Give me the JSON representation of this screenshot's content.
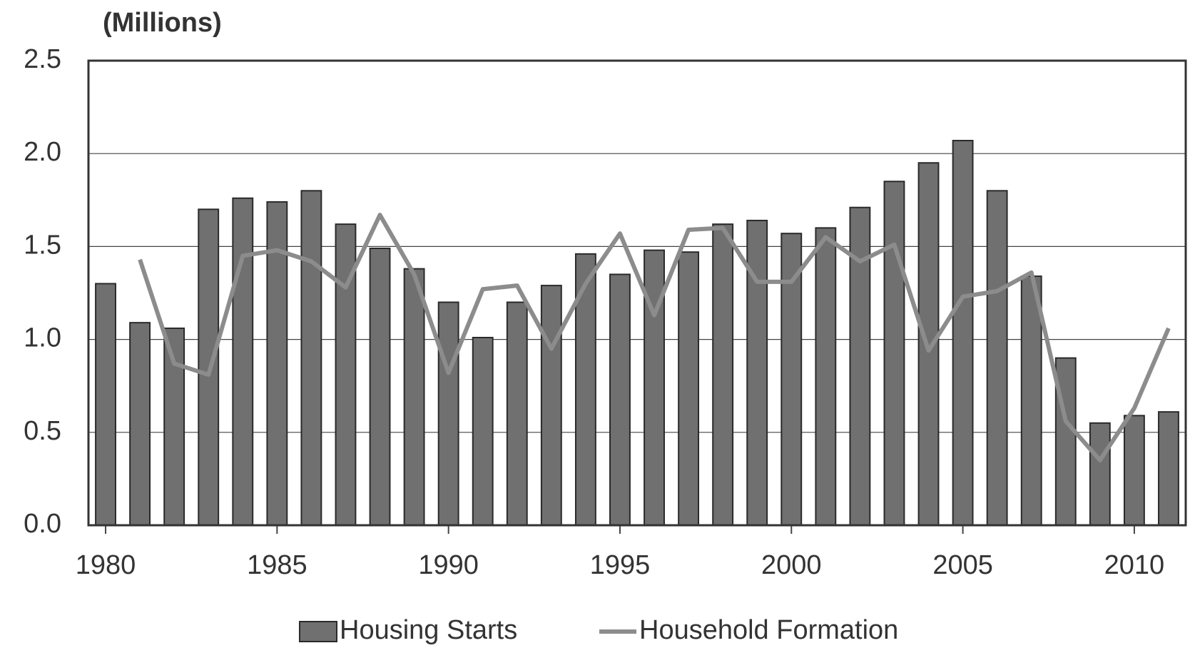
{
  "chart_data": {
    "type": "bar-line",
    "title": "(Millions)",
    "x": [
      1980,
      1981,
      1982,
      1983,
      1984,
      1985,
      1986,
      1987,
      1988,
      1989,
      1990,
      1991,
      1992,
      1993,
      1994,
      1995,
      1996,
      1997,
      1998,
      1999,
      2000,
      2001,
      2002,
      2003,
      2004,
      2005,
      2006,
      2007,
      2008,
      2009,
      2010,
      2011
    ],
    "series": [
      {
        "name": "Housing Starts",
        "type": "bar",
        "color": "#707070",
        "values": [
          1.3,
          1.09,
          1.06,
          1.7,
          1.76,
          1.74,
          1.8,
          1.62,
          1.49,
          1.38,
          1.2,
          1.01,
          1.2,
          1.29,
          1.46,
          1.35,
          1.48,
          1.47,
          1.62,
          1.64,
          1.57,
          1.6,
          1.71,
          1.85,
          1.95,
          2.07,
          1.8,
          1.34,
          0.9,
          0.55,
          0.59,
          0.61
        ]
      },
      {
        "name": "Household Formation",
        "type": "line",
        "color": "#8c8c8c",
        "values": [
          null,
          1.43,
          0.87,
          0.81,
          1.45,
          1.48,
          1.42,
          1.28,
          1.67,
          1.35,
          0.82,
          1.27,
          1.29,
          0.95,
          1.3,
          1.57,
          1.13,
          1.59,
          1.6,
          1.31,
          1.31,
          1.55,
          1.42,
          1.51,
          0.94,
          1.23,
          1.26,
          1.36,
          0.56,
          0.35,
          0.63,
          1.06
        ]
      }
    ],
    "xlim": [
      1979.5,
      2011.5
    ],
    "xticks": [
      1980,
      1985,
      1990,
      1995,
      2000,
      2005,
      2010
    ],
    "ylim": [
      0,
      2.5
    ],
    "yticks": [
      {
        "value": 0,
        "label": "0.0"
      },
      0.5,
      {
        "value": 1,
        "label": "1.0"
      },
      1.5,
      {
        "value": 2,
        "label": "2.0"
      },
      {
        "value": 2.5,
        "label": "2.5"
      }
    ],
    "grid": true
  }
}
